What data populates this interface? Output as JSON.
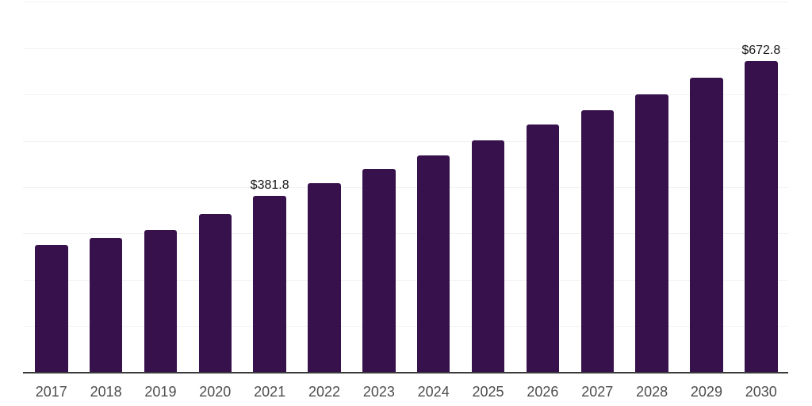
{
  "chart_data": {
    "type": "bar",
    "title": "",
    "xlabel": "",
    "ylabel": "",
    "categories": [
      "2017",
      "2018",
      "2019",
      "2020",
      "2021",
      "2022",
      "2023",
      "2024",
      "2025",
      "2026",
      "2027",
      "2028",
      "2029",
      "2030"
    ],
    "values": [
      275.3,
      290.6,
      307.0,
      341.5,
      381.8,
      409.0,
      438.9,
      469.0,
      501.3,
      535.8,
      566.4,
      600.3,
      636.0,
      672.8
    ],
    "point_labels": [
      "",
      "",
      "",
      "",
      "$381.8",
      "",
      "",
      "",
      "",
      "",
      "",
      "",
      "",
      "$672.8"
    ],
    "ylim": [
      0,
      800
    ],
    "gridline_step": 100,
    "grid": true,
    "y_tick_labels_shown": false,
    "legend": "none"
  },
  "colors": {
    "background": "#ffffff",
    "bar": "#37114c",
    "gridline": "#f2f2f2",
    "axis_line": "#3a3a3a",
    "tick_label": "#4d4d4d",
    "value_label": "#1a1a1a"
  }
}
